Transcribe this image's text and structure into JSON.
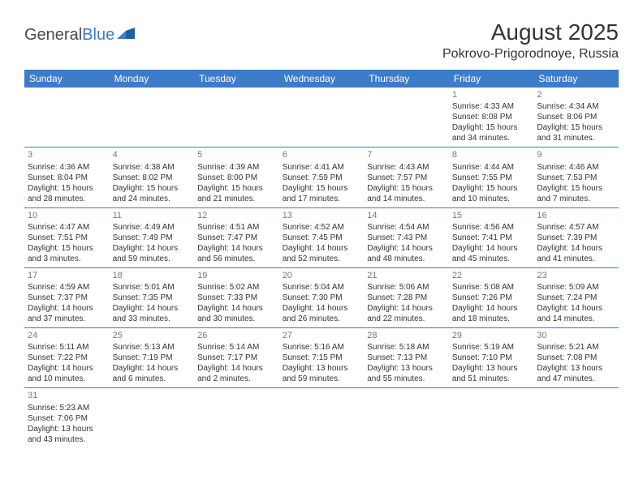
{
  "logo": {
    "part1": "General",
    "part2": "Blue"
  },
  "title": "August 2025",
  "location": "Pokrovo-Prigorodnoye, Russia",
  "header_bg": "#3d7cc9",
  "header_fg": "#ffffff",
  "border_color": "#3d7cc9",
  "text_color": "#333333",
  "daynum_color": "#777777",
  "font_family": "Arial, Helvetica, sans-serif",
  "days": [
    "Sunday",
    "Monday",
    "Tuesday",
    "Wednesday",
    "Thursday",
    "Friday",
    "Saturday"
  ],
  "weeks": [
    [
      null,
      null,
      null,
      null,
      null,
      {
        "n": "1",
        "sr": "4:33 AM",
        "ss": "8:08 PM",
        "dl": "15 hours and 34 minutes."
      },
      {
        "n": "2",
        "sr": "4:34 AM",
        "ss": "8:06 PM",
        "dl": "15 hours and 31 minutes."
      }
    ],
    [
      {
        "n": "3",
        "sr": "4:36 AM",
        "ss": "8:04 PM",
        "dl": "15 hours and 28 minutes."
      },
      {
        "n": "4",
        "sr": "4:38 AM",
        "ss": "8:02 PM",
        "dl": "15 hours and 24 minutes."
      },
      {
        "n": "5",
        "sr": "4:39 AM",
        "ss": "8:00 PM",
        "dl": "15 hours and 21 minutes."
      },
      {
        "n": "6",
        "sr": "4:41 AM",
        "ss": "7:59 PM",
        "dl": "15 hours and 17 minutes."
      },
      {
        "n": "7",
        "sr": "4:43 AM",
        "ss": "7:57 PM",
        "dl": "15 hours and 14 minutes."
      },
      {
        "n": "8",
        "sr": "4:44 AM",
        "ss": "7:55 PM",
        "dl": "15 hours and 10 minutes."
      },
      {
        "n": "9",
        "sr": "4:46 AM",
        "ss": "7:53 PM",
        "dl": "15 hours and 7 minutes."
      }
    ],
    [
      {
        "n": "10",
        "sr": "4:47 AM",
        "ss": "7:51 PM",
        "dl": "15 hours and 3 minutes."
      },
      {
        "n": "11",
        "sr": "4:49 AM",
        "ss": "7:49 PM",
        "dl": "14 hours and 59 minutes."
      },
      {
        "n": "12",
        "sr": "4:51 AM",
        "ss": "7:47 PM",
        "dl": "14 hours and 56 minutes."
      },
      {
        "n": "13",
        "sr": "4:52 AM",
        "ss": "7:45 PM",
        "dl": "14 hours and 52 minutes."
      },
      {
        "n": "14",
        "sr": "4:54 AM",
        "ss": "7:43 PM",
        "dl": "14 hours and 48 minutes."
      },
      {
        "n": "15",
        "sr": "4:56 AM",
        "ss": "7:41 PM",
        "dl": "14 hours and 45 minutes."
      },
      {
        "n": "16",
        "sr": "4:57 AM",
        "ss": "7:39 PM",
        "dl": "14 hours and 41 minutes."
      }
    ],
    [
      {
        "n": "17",
        "sr": "4:59 AM",
        "ss": "7:37 PM",
        "dl": "14 hours and 37 minutes."
      },
      {
        "n": "18",
        "sr": "5:01 AM",
        "ss": "7:35 PM",
        "dl": "14 hours and 33 minutes."
      },
      {
        "n": "19",
        "sr": "5:02 AM",
        "ss": "7:33 PM",
        "dl": "14 hours and 30 minutes."
      },
      {
        "n": "20",
        "sr": "5:04 AM",
        "ss": "7:30 PM",
        "dl": "14 hours and 26 minutes."
      },
      {
        "n": "21",
        "sr": "5:06 AM",
        "ss": "7:28 PM",
        "dl": "14 hours and 22 minutes."
      },
      {
        "n": "22",
        "sr": "5:08 AM",
        "ss": "7:26 PM",
        "dl": "14 hours and 18 minutes."
      },
      {
        "n": "23",
        "sr": "5:09 AM",
        "ss": "7:24 PM",
        "dl": "14 hours and 14 minutes."
      }
    ],
    [
      {
        "n": "24",
        "sr": "5:11 AM",
        "ss": "7:22 PM",
        "dl": "14 hours and 10 minutes."
      },
      {
        "n": "25",
        "sr": "5:13 AM",
        "ss": "7:19 PM",
        "dl": "14 hours and 6 minutes."
      },
      {
        "n": "26",
        "sr": "5:14 AM",
        "ss": "7:17 PM",
        "dl": "14 hours and 2 minutes."
      },
      {
        "n": "27",
        "sr": "5:16 AM",
        "ss": "7:15 PM",
        "dl": "13 hours and 59 minutes."
      },
      {
        "n": "28",
        "sr": "5:18 AM",
        "ss": "7:13 PM",
        "dl": "13 hours and 55 minutes."
      },
      {
        "n": "29",
        "sr": "5:19 AM",
        "ss": "7:10 PM",
        "dl": "13 hours and 51 minutes."
      },
      {
        "n": "30",
        "sr": "5:21 AM",
        "ss": "7:08 PM",
        "dl": "13 hours and 47 minutes."
      }
    ],
    [
      {
        "n": "31",
        "sr": "5:23 AM",
        "ss": "7:06 PM",
        "dl": "13 hours and 43 minutes."
      },
      null,
      null,
      null,
      null,
      null,
      null
    ]
  ],
  "labels": {
    "sunrise": "Sunrise:",
    "sunset": "Sunset:",
    "daylight": "Daylight:"
  }
}
